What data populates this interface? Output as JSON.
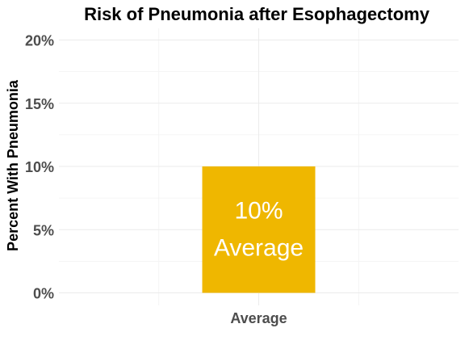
{
  "chart_data": {
    "type": "bar",
    "title": "Risk of Pneumonia after Esophagectomy",
    "xlabel": "",
    "ylabel": "Percent With Pneumonia",
    "categories": [
      "Average"
    ],
    "values": [
      10
    ],
    "ylim": [
      0,
      21
    ],
    "yticks": [
      0,
      5,
      10,
      15,
      20
    ],
    "ytick_labels": [
      "0%",
      "5%",
      "10%",
      "15%",
      "20%"
    ],
    "data_labels": [
      {
        "value_text": "10%",
        "category_text": "Average"
      }
    ],
    "bar_color": "#EFB700",
    "grid": true,
    "legend": "none"
  }
}
